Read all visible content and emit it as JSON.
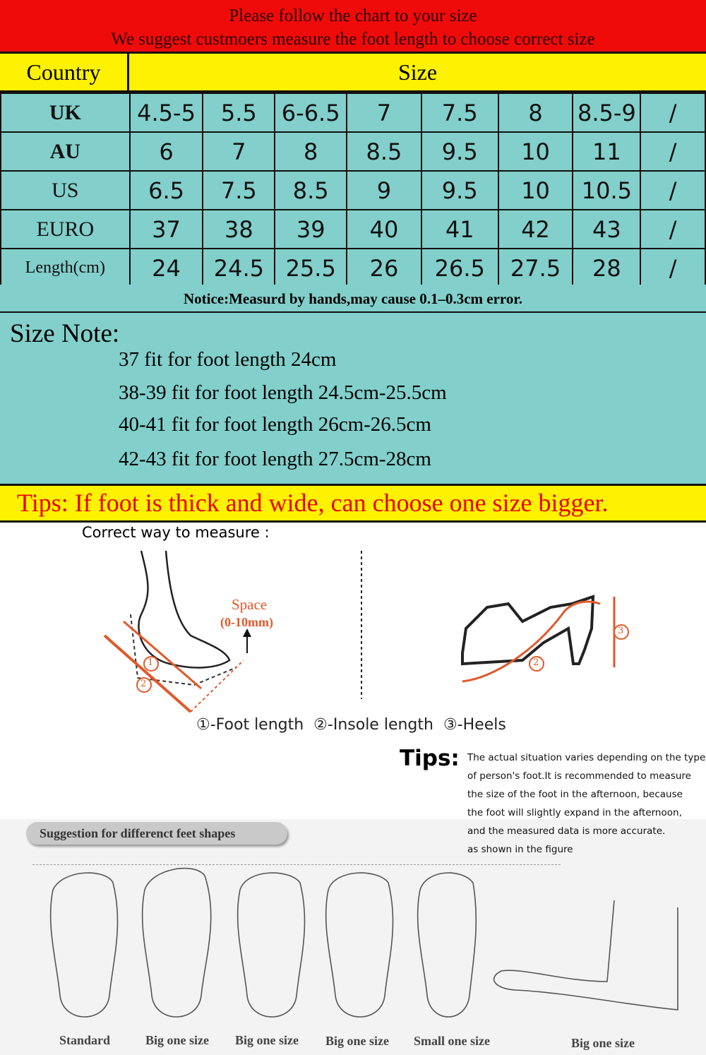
{
  "banner": {
    "line1": "Please follow the chart to your size",
    "line2": "We suggest custmoers measure the foot length to choose correct size"
  },
  "header": {
    "country": "Country",
    "size": "Size"
  },
  "table": [
    {
      "label": "UK",
      "values": [
        "4.5-5",
        "5.5",
        "6-6.5",
        "7",
        "7.5",
        "8",
        "8.5-9",
        "/"
      ]
    },
    {
      "label": "AU",
      "values": [
        "6",
        "7",
        "8",
        "8.5",
        "9.5",
        "10",
        "11",
        "/"
      ]
    },
    {
      "label": "US",
      "values": [
        "6.5",
        "7.5",
        "8.5",
        "9",
        "9.5",
        "10",
        "10.5",
        "/"
      ]
    },
    {
      "label": "EURO",
      "values": [
        "37",
        "38",
        "39",
        "40",
        "41",
        "42",
        "43",
        "/"
      ]
    },
    {
      "label": "Length(cm)",
      "values": [
        "24",
        "24.5",
        "25.5",
        "26",
        "26.5",
        "27.5",
        "28",
        "/"
      ]
    }
  ],
  "notice": "Notice:Measurd by hands,may cause 0.1–0.3cm error.",
  "size_note": {
    "title": "Size Note:",
    "lines": [
      "37 fit for foot length 24cm",
      "38-39 fit for foot length 24.5cm-25.5cm",
      "40-41 fit for foot length 26cm-26.5cm",
      "42-43 fit for foot length 27.5cm-28cm"
    ]
  },
  "tips_bar": "Tips: If foot is thick and wide, can choose one size bigger.",
  "measure": {
    "title": "Correct way to measure :",
    "space": "Space",
    "space_range": "(0-10mm)",
    "legend": "①-Foot length  ②-Insole length  ③-Heels",
    "n1": "1",
    "n2": "2",
    "n3": "3"
  },
  "tips": {
    "label": "Tips:",
    "lines": [
      "The actual situation varies depending on the type",
      "of person's foot.It is recommended to measure",
      "the size of the foot in the afternoon, because",
      "the foot will slightly expand in the afternoon,",
      "and the measured data is more accurate.",
      "as shown in the figure"
    ]
  },
  "shapes": {
    "title": "Suggestion for differenct feet shapes",
    "captions": [
      "Standard",
      "Big one size",
      "Big one size",
      "Big one size",
      "Small one size",
      "Big one size"
    ]
  },
  "colors": {
    "red": "#f00b0b",
    "yellow": "#fff200",
    "teal": "#82cfcb",
    "orange": "#e0592a"
  }
}
